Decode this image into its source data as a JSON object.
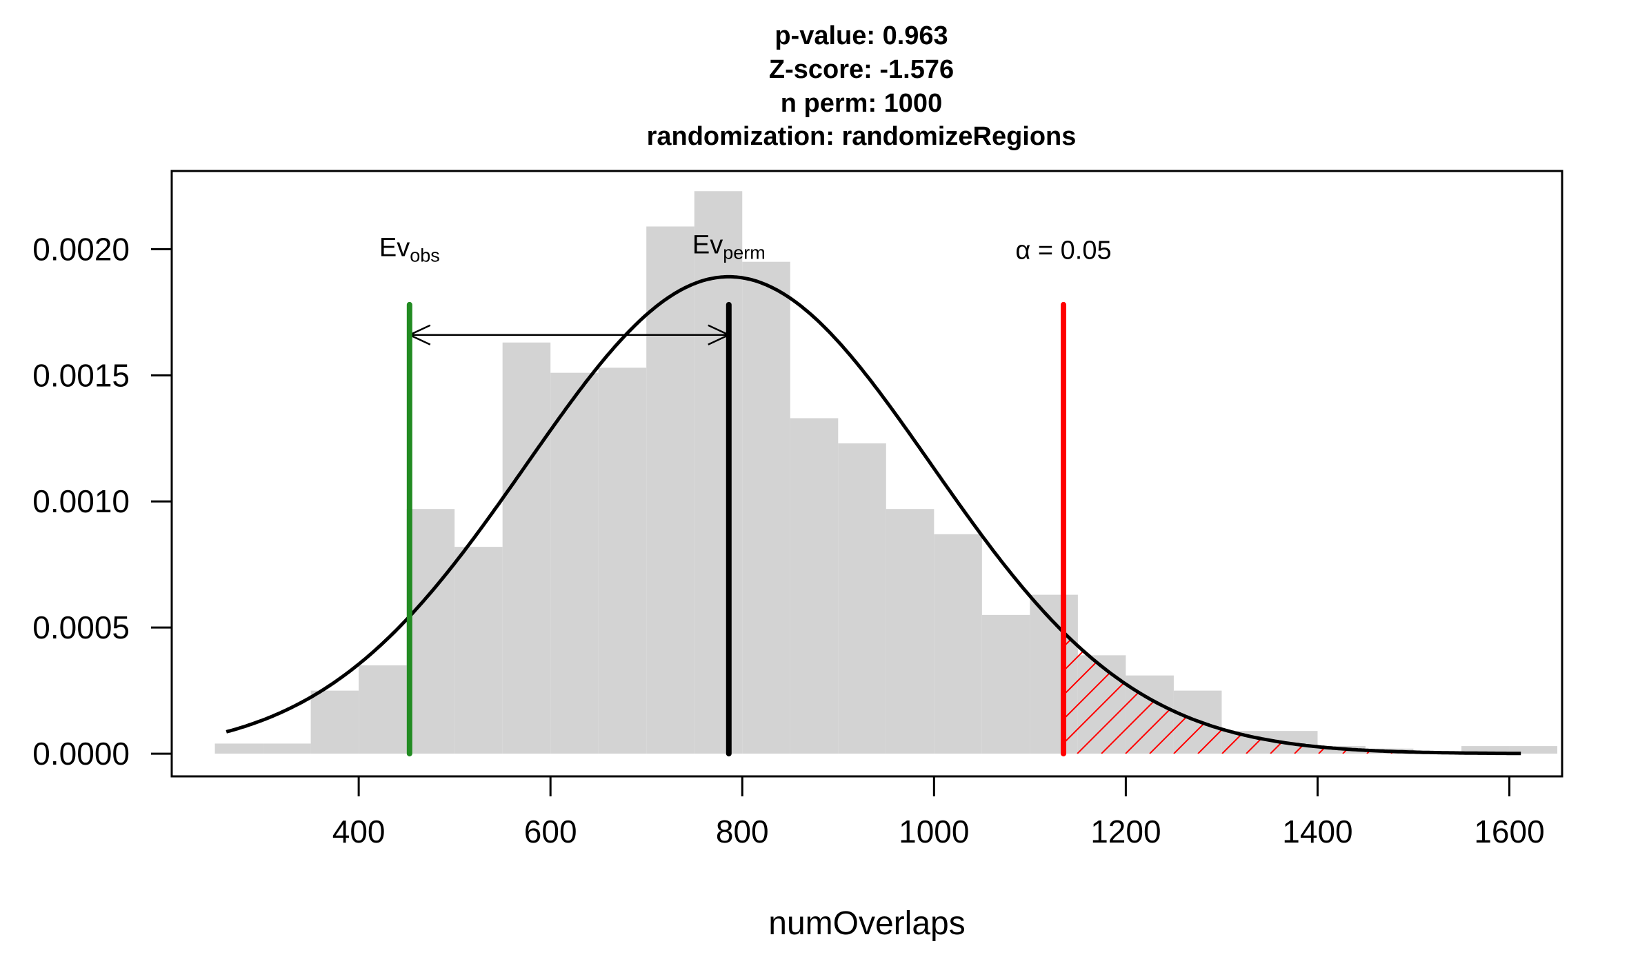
{
  "chart_data": {
    "type": "histogram",
    "title_lines": [
      "p-value:  0.963",
      "Z-score:  -1.576",
      "n perm:  1000",
      "randomization:  randomizeRegions"
    ],
    "xlabel": "numOverlaps",
    "ylabel": "",
    "xlim": [
      205,
      1655
    ],
    "ylim": [
      -9e-05,
      0.00231
    ],
    "xticks": [
      400,
      600,
      800,
      1000,
      1200,
      1400,
      1600
    ],
    "yticks": [
      "0.0000",
      "0.0005",
      "0.0010",
      "0.0015",
      "0.0020"
    ],
    "bin_width": 50,
    "bins": [
      {
        "start": 250,
        "density": 4e-05
      },
      {
        "start": 300,
        "density": 4e-05
      },
      {
        "start": 350,
        "density": 0.00025
      },
      {
        "start": 400,
        "density": 0.00035
      },
      {
        "start": 450,
        "density": 0.00097
      },
      {
        "start": 500,
        "density": 0.00082
      },
      {
        "start": 550,
        "density": 0.00163
      },
      {
        "start": 600,
        "density": 0.00151
      },
      {
        "start": 650,
        "density": 0.00153
      },
      {
        "start": 700,
        "density": 0.00209
      },
      {
        "start": 750,
        "density": 0.00223
      },
      {
        "start": 800,
        "density": 0.00195
      },
      {
        "start": 850,
        "density": 0.00133
      },
      {
        "start": 900,
        "density": 0.00123
      },
      {
        "start": 950,
        "density": 0.00097
      },
      {
        "start": 1000,
        "density": 0.00087
      },
      {
        "start": 1050,
        "density": 0.00055
      },
      {
        "start": 1100,
        "density": 0.00063
      },
      {
        "start": 1150,
        "density": 0.00039
      },
      {
        "start": 1200,
        "density": 0.00031
      },
      {
        "start": 1250,
        "density": 0.00025
      },
      {
        "start": 1300,
        "density": 9e-05
      },
      {
        "start": 1350,
        "density": 9e-05
      },
      {
        "start": 1400,
        "density": 3e-05
      },
      {
        "start": 1450,
        "density": 2e-05
      },
      {
        "start": 1500,
        "density": 1e-05
      },
      {
        "start": 1550,
        "density": 3e-05
      },
      {
        "start": 1600,
        "density": 3e-05
      }
    ],
    "normal_curve": {
      "mean": 786,
      "sd": 211,
      "x_from": 262,
      "x_to": 1612
    },
    "observed": {
      "value": 453,
      "label_main": "Ev",
      "label_sub": "obs",
      "color": "#228B22"
    },
    "permuted": {
      "value": 786,
      "label_main": "Ev",
      "label_sub": "perm",
      "color": "#000000"
    },
    "alpha": {
      "value": 1135,
      "label": "α = 0.05",
      "color": "#FF0000"
    },
    "line_top_density": 0.00178,
    "arrow_density": 0.00166,
    "bar_color": "#D3D3D3"
  }
}
